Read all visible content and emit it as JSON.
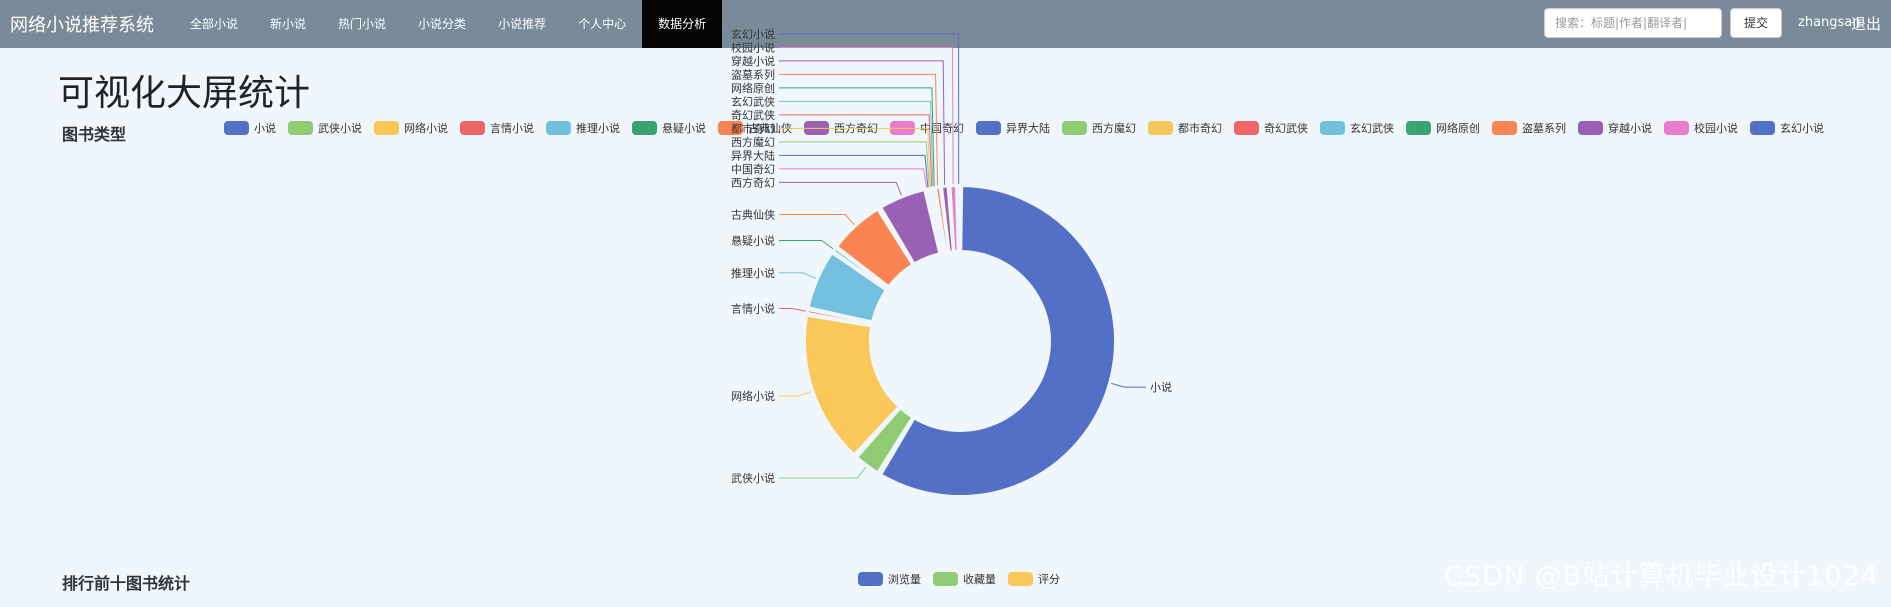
{
  "nav": {
    "brand": "网络小说推荐系统",
    "items": [
      {
        "label": "全部小说",
        "active": false
      },
      {
        "label": "新小说",
        "active": false
      },
      {
        "label": "热门小说",
        "active": false
      },
      {
        "label": "小说分类",
        "active": false
      },
      {
        "label": "小说推荐",
        "active": false
      },
      {
        "label": "个人中心",
        "active": false
      },
      {
        "label": "数据分析",
        "active": true
      }
    ],
    "search_placeholder": "搜索：标题|作者|翻译者|",
    "submit_label": "提交",
    "username": "zhangsan",
    "logout_label": "退出"
  },
  "page_title": "可视化大屏统计",
  "section_book_types": "图书类型",
  "section_top10": "排行前十图书统计",
  "watermark": "CSDN @B站计算机毕业设计1024",
  "palette": [
    "#5470c6",
    "#91cc75",
    "#fac858",
    "#ee6666",
    "#73c0de",
    "#3ba272",
    "#fc8452",
    "#9a60b4",
    "#ea7ccc"
  ],
  "chart_data": {
    "type": "pie",
    "variant": "donut",
    "legend_position": "top",
    "categories": [
      "小说",
      "武侠小说",
      "网络小说",
      "言情小说",
      "推理小说",
      "悬疑小说",
      "古典仙侠",
      "西方奇幻",
      "中国奇幻",
      "异界大陆",
      "西方魔幻",
      "都市奇幻",
      "奇幻武侠",
      "玄幻武侠",
      "网络原创",
      "盗墓系列",
      "穿越小说",
      "校园小说",
      "玄幻小说"
    ],
    "values": [
      135,
      7,
      37,
      1,
      15,
      1,
      14,
      12,
      0.3,
      0.3,
      0.3,
      0.3,
      0.3,
      0.3,
      0.3,
      1.3,
      2,
      2,
      0.6
    ],
    "legend2": [
      "浏览量",
      "收藏量",
      "评分"
    ]
  }
}
